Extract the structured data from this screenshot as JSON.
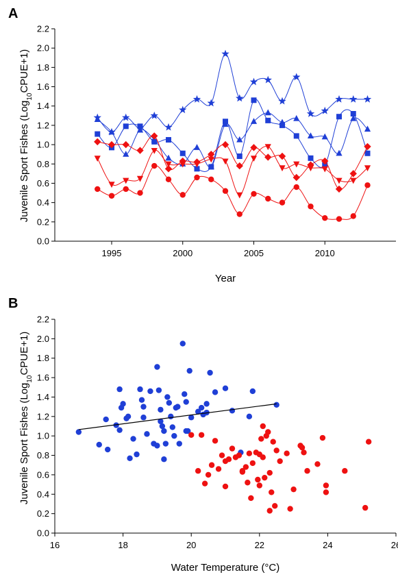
{
  "panels": {
    "a_label": "A",
    "b_label": "B"
  },
  "chart_data": [
    {
      "type": "line",
      "panel": "A",
      "xlabel": "Year",
      "ylabel": "Juvenile Sport Fishes (Log10CPUE+1)",
      "ylabel_parts": {
        "pre": "Juvenile Sport Fishes (Log",
        "sub": "10",
        "post": "CPUE+1)"
      },
      "xlim": [
        1991,
        2015
      ],
      "ylim": [
        0.0,
        2.2
      ],
      "xticks": [
        1995,
        2000,
        2005,
        2010
      ],
      "yticks": [
        "0.0",
        "0.2",
        "0.4",
        "0.6",
        "0.8",
        "1.0",
        "1.2",
        "1.4",
        "1.6",
        "1.8",
        "2.0",
        "2.2"
      ],
      "x": [
        1994,
        1995,
        1996,
        1997,
        1998,
        1999,
        2000,
        2001,
        2002,
        2003,
        2004,
        2005,
        2006,
        2007,
        2008,
        2009,
        2010,
        2011,
        2012,
        2013
      ],
      "grid": false,
      "series": [
        {
          "marker": "star",
          "color": "#1f3fd6",
          "values": [
            1.28,
            1.13,
            1.28,
            1.17,
            1.3,
            1.18,
            1.36,
            1.47,
            1.43,
            1.94,
            1.48,
            1.65,
            1.67,
            1.45,
            1.7,
            1.32,
            1.35,
            1.47,
            1.47,
            1.47
          ]
        },
        {
          "marker": "triangle-up",
          "color": "#1f3fd6",
          "values": [
            1.26,
            1.13,
            0.9,
            1.15,
            1.05,
            0.86,
            0.8,
            0.97,
            0.77,
            1.21,
            1.05,
            1.24,
            1.33,
            1.23,
            1.27,
            1.09,
            1.08,
            0.91,
            1.27,
            1.16
          ]
        },
        {
          "marker": "square",
          "color": "#1f3fd6",
          "values": [
            1.11,
            0.97,
            1.19,
            1.19,
            1.03,
            1.05,
            0.91,
            0.75,
            0.77,
            1.24,
            0.88,
            1.46,
            1.25,
            1.2,
            1.09,
            0.86,
            0.79,
            1.29,
            1.32,
            0.91
          ]
        },
        {
          "marker": "diamond",
          "color": "#ee1111",
          "values": [
            1.03,
            1.0,
            1.0,
            0.94,
            1.09,
            0.75,
            0.83,
            0.82,
            0.9,
            1.0,
            0.78,
            0.97,
            0.87,
            0.88,
            0.66,
            0.79,
            0.83,
            0.54,
            0.7,
            0.98
          ]
        },
        {
          "marker": "triangle-down",
          "color": "#ee1111",
          "values": [
            0.86,
            0.59,
            0.63,
            0.65,
            0.94,
            0.8,
            0.8,
            0.8,
            0.85,
            0.83,
            0.48,
            0.86,
            0.98,
            0.76,
            0.8,
            0.76,
            0.75,
            0.63,
            0.63,
            0.76
          ]
        },
        {
          "marker": "circle",
          "color": "#ee1111",
          "values": [
            0.54,
            0.47,
            0.54,
            0.5,
            0.78,
            0.64,
            0.48,
            0.66,
            0.64,
            0.52,
            0.28,
            0.49,
            0.44,
            0.4,
            0.56,
            0.36,
            0.24,
            0.23,
            0.26,
            0.58
          ]
        }
      ]
    },
    {
      "type": "scatter",
      "panel": "B",
      "xlabel": "Water Temperature (°C)",
      "ylabel": "Juvenile Sport Fishes (Log10CPUE+1)",
      "ylabel_parts": {
        "pre": "Juvenile Sport Fishes (Log",
        "sub": "10",
        "post": "CPUE+1)"
      },
      "xlim": [
        16,
        26
      ],
      "ylim": [
        0.0,
        2.2
      ],
      "xticks": [
        16,
        18,
        20,
        22,
        24,
        26
      ],
      "yticks": [
        "0.0",
        "0.2",
        "0.4",
        "0.6",
        "0.8",
        "1.0",
        "1.2",
        "1.4",
        "1.6",
        "1.8",
        "2.0",
        "2.2"
      ],
      "grid": false,
      "trendline": {
        "color": "#000000",
        "points": [
          [
            16.7,
            1.065
          ],
          [
            22.5,
            1.33
          ]
        ]
      },
      "series": [
        {
          "color": "#1f3fd6",
          "points": [
            [
              16.7,
              1.04
            ],
            [
              17.3,
              0.91
            ],
            [
              17.5,
              1.17
            ],
            [
              17.55,
              0.86
            ],
            [
              17.8,
              1.11
            ],
            [
              17.9,
              1.48
            ],
            [
              17.95,
              1.29
            ],
            [
              18.0,
              1.33
            ],
            [
              17.9,
              1.06
            ],
            [
              18.1,
              1.18
            ],
            [
              18.15,
              1.2
            ],
            [
              18.2,
              0.77
            ],
            [
              18.3,
              0.97
            ],
            [
              18.4,
              0.81
            ],
            [
              18.5,
              1.48
            ],
            [
              18.55,
              1.37
            ],
            [
              18.6,
              1.3
            ],
            [
              18.6,
              1.19
            ],
            [
              18.7,
              1.02
            ],
            [
              18.8,
              1.46
            ],
            [
              18.9,
              0.92
            ],
            [
              19.0,
              1.71
            ],
            [
              19.0,
              0.9
            ],
            [
              19.05,
              1.47
            ],
            [
              19.1,
              1.27
            ],
            [
              19.1,
              1.15
            ],
            [
              19.15,
              1.1
            ],
            [
              19.2,
              1.05
            ],
            [
              19.2,
              0.76
            ],
            [
              19.25,
              0.92
            ],
            [
              19.3,
              1.4
            ],
            [
              19.35,
              1.34
            ],
            [
              19.4,
              1.2
            ],
            [
              19.45,
              1.09
            ],
            [
              19.5,
              1.0
            ],
            [
              19.55,
              1.29
            ],
            [
              19.6,
              1.3
            ],
            [
              19.65,
              0.92
            ],
            [
              19.75,
              1.95
            ],
            [
              19.8,
              1.43
            ],
            [
              19.85,
              1.35
            ],
            [
              19.85,
              1.05
            ],
            [
              19.9,
              1.05
            ],
            [
              19.95,
              1.67
            ],
            [
              20.0,
              1.19
            ],
            [
              20.2,
              1.25
            ],
            [
              20.3,
              1.29
            ],
            [
              20.35,
              1.22
            ],
            [
              20.45,
              1.24
            ],
            [
              20.45,
              1.33
            ],
            [
              20.55,
              1.65
            ],
            [
              20.7,
              1.45
            ],
            [
              21.0,
              1.49
            ],
            [
              21.2,
              1.26
            ],
            [
              21.45,
              0.83
            ],
            [
              21.7,
              1.2
            ],
            [
              21.8,
              1.46
            ],
            [
              22.5,
              1.32
            ]
          ]
        },
        {
          "color": "#ee1111",
          "points": [
            [
              20.0,
              1.01
            ],
            [
              20.2,
              0.64
            ],
            [
              20.3,
              1.01
            ],
            [
              20.4,
              0.51
            ],
            [
              20.5,
              0.6
            ],
            [
              20.6,
              0.7
            ],
            [
              20.7,
              0.95
            ],
            [
              20.8,
              0.66
            ],
            [
              20.9,
              0.8
            ],
            [
              21.0,
              0.48
            ],
            [
              21.0,
              0.74
            ],
            [
              21.1,
              0.76
            ],
            [
              21.2,
              0.87
            ],
            [
              21.3,
              0.78
            ],
            [
              21.4,
              0.8
            ],
            [
              21.5,
              0.64
            ],
            [
              21.5,
              0.63
            ],
            [
              21.6,
              0.68
            ],
            [
              21.65,
              0.52
            ],
            [
              21.7,
              0.82
            ],
            [
              21.75,
              0.36
            ],
            [
              21.8,
              0.72
            ],
            [
              21.9,
              0.83
            ],
            [
              21.95,
              0.55
            ],
            [
              22.0,
              0.49
            ],
            [
              22.0,
              0.81
            ],
            [
              22.05,
              0.97
            ],
            [
              22.1,
              1.1
            ],
            [
              22.1,
              0.78
            ],
            [
              22.15,
              0.57
            ],
            [
              22.2,
              1.0
            ],
            [
              22.25,
              1.04
            ],
            [
              22.3,
              0.62
            ],
            [
              22.3,
              0.23
            ],
            [
              22.35,
              0.42
            ],
            [
              22.4,
              0.94
            ],
            [
              22.45,
              0.28
            ],
            [
              22.5,
              0.85
            ],
            [
              22.6,
              0.74
            ],
            [
              22.8,
              0.82
            ],
            [
              22.9,
              0.25
            ],
            [
              23.0,
              0.45
            ],
            [
              23.2,
              0.9
            ],
            [
              23.25,
              0.88
            ],
            [
              23.3,
              0.83
            ],
            [
              23.4,
              0.64
            ],
            [
              23.7,
              0.71
            ],
            [
              23.85,
              0.98
            ],
            [
              23.95,
              0.49
            ],
            [
              23.95,
              0.42
            ],
            [
              24.5,
              0.64
            ],
            [
              25.1,
              0.26
            ],
            [
              25.2,
              0.94
            ]
          ]
        }
      ]
    }
  ]
}
